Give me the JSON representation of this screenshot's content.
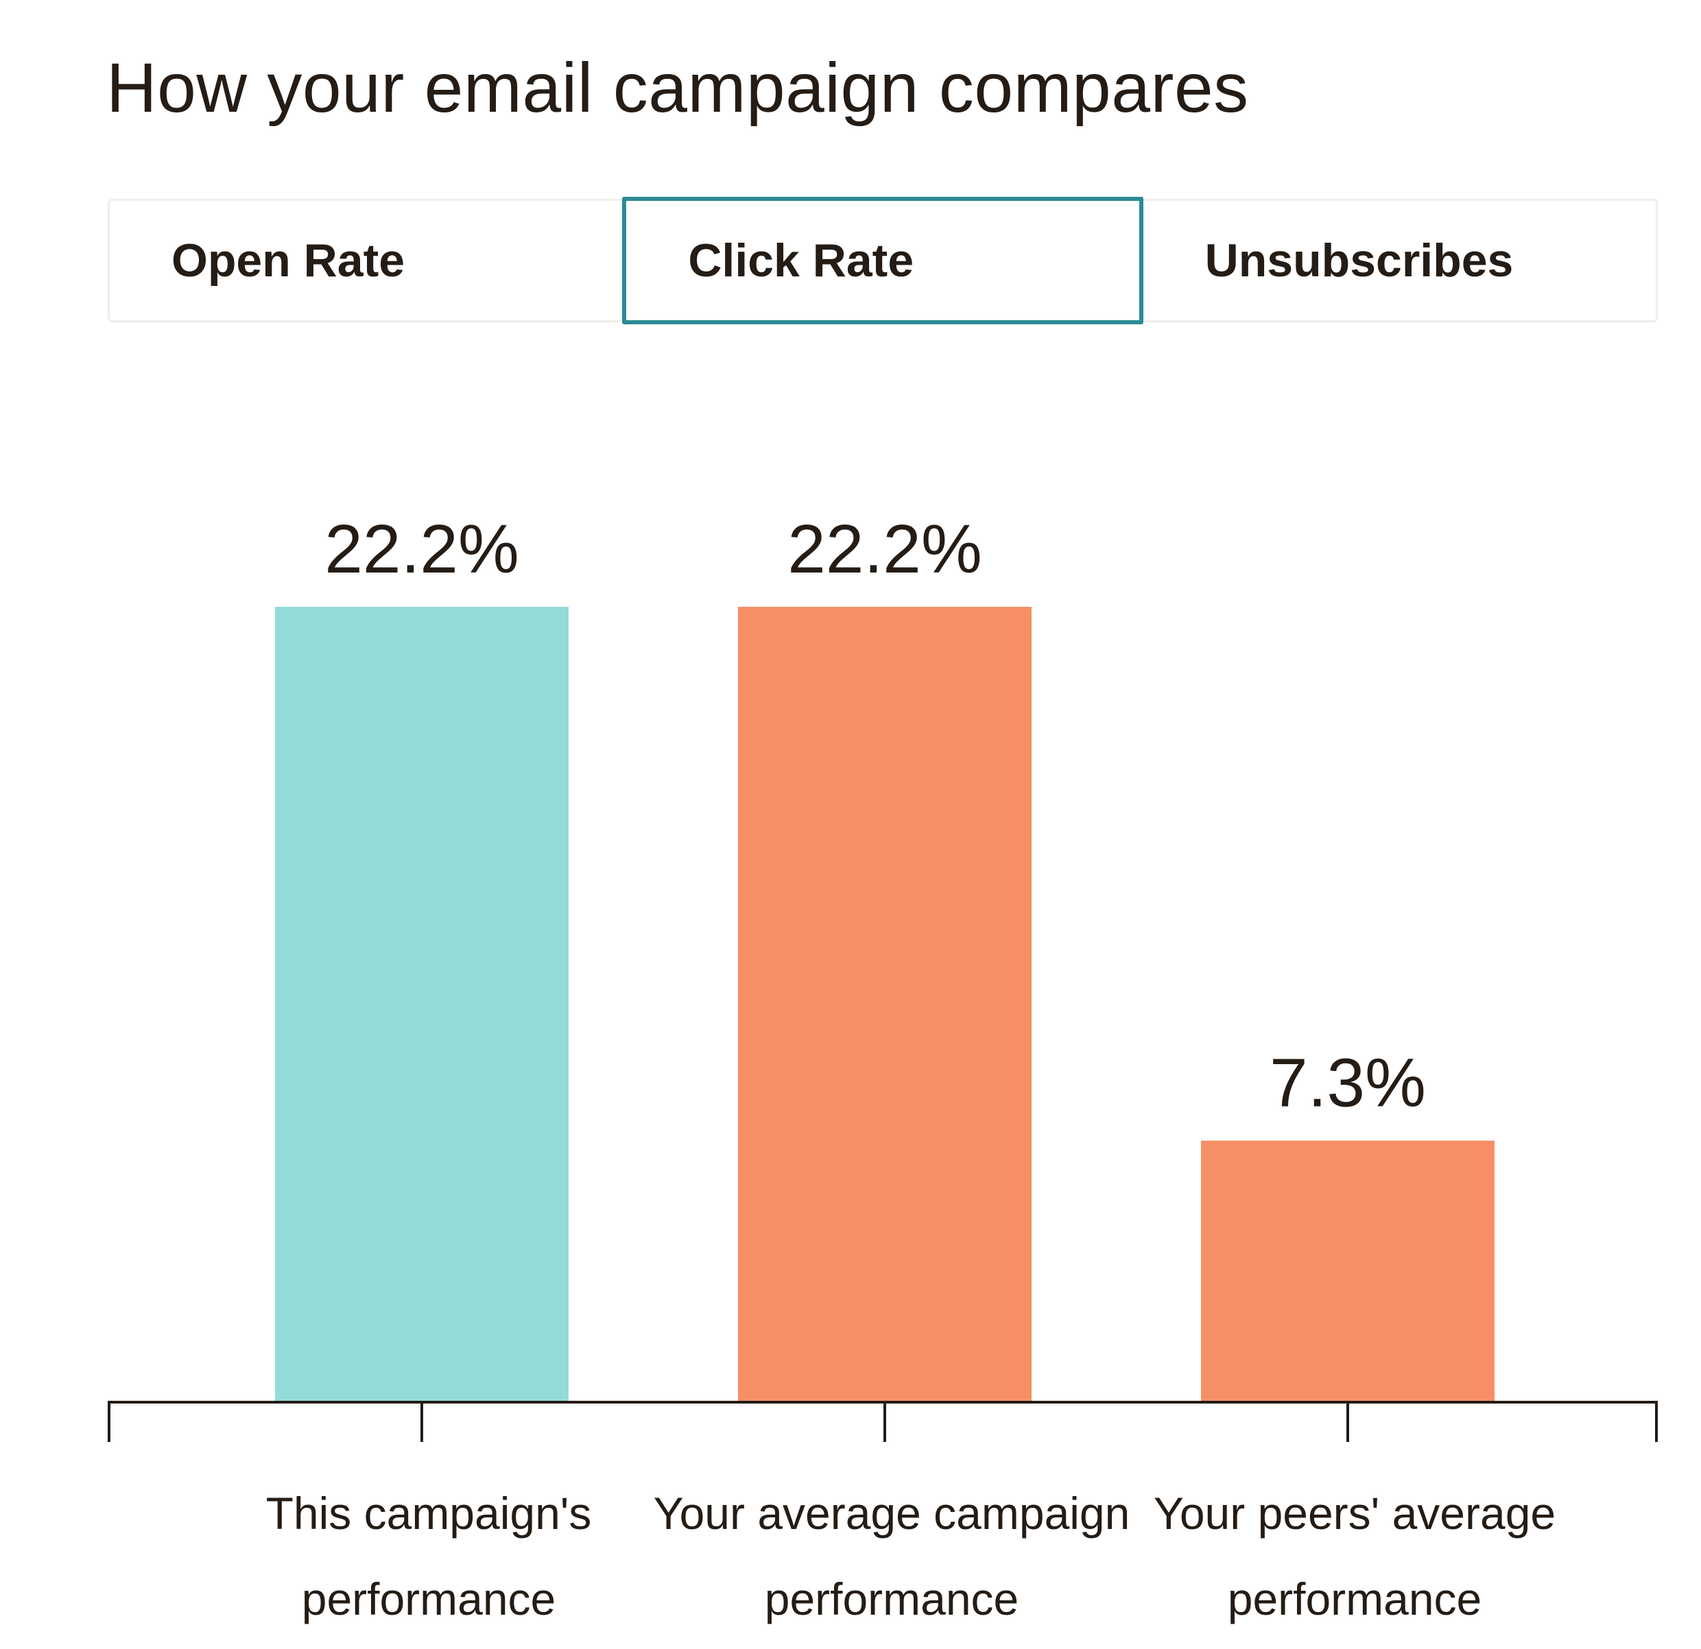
{
  "header": {
    "title": "How your email campaign compares"
  },
  "tabs": [
    {
      "label": "Open Rate",
      "active": false
    },
    {
      "label": "Click Rate",
      "active": true
    },
    {
      "label": "Unsubscribes",
      "active": false
    }
  ],
  "colors": {
    "this_campaign": "#93dbd7",
    "average": "#f78f66",
    "active_tab_border": "#2b8b93",
    "axis": "#241c15"
  },
  "chart_data": {
    "type": "bar",
    "categories": [
      [
        "This campaign's",
        "performance"
      ],
      [
        "Your average campaign",
        "performance"
      ],
      [
        "Your peers' average",
        "performance"
      ]
    ],
    "values": [
      22.2,
      22.2,
      7.3
    ],
    "value_labels": [
      "22.2%",
      "22.2%",
      "7.3%"
    ],
    "bar_colors": [
      "#93dbd7",
      "#f78f66",
      "#f78f66"
    ],
    "ylim": [
      0,
      22.2
    ],
    "grid": false
  }
}
